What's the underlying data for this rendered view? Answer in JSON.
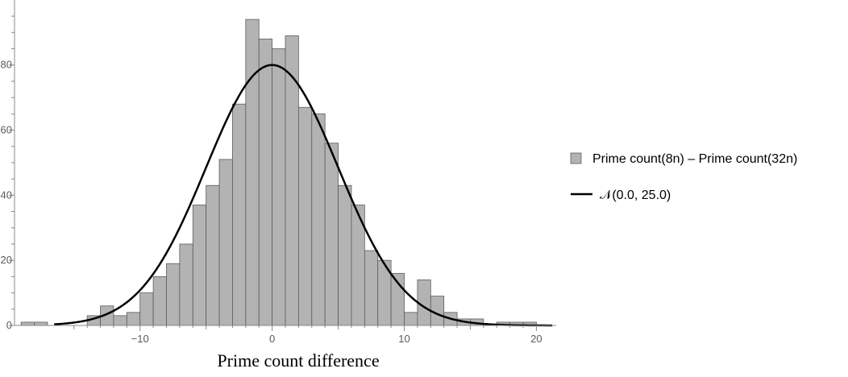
{
  "chart_data": {
    "type": "bar",
    "xlabel": "Prime count difference",
    "ylabel": "",
    "xlim": [
      -19.5,
      21.5
    ],
    "ylim": [
      0,
      97
    ],
    "x_ticks": [
      -10,
      0,
      10,
      20
    ],
    "y_ticks": [
      0,
      20,
      40,
      60,
      80
    ],
    "bin_width": 1,
    "bin_left_edges": [
      -19,
      -18,
      -17,
      -16,
      -15,
      -14,
      -13,
      -12,
      -11,
      -10,
      -9,
      -8,
      -7,
      -6,
      -5,
      -4,
      -3,
      -2,
      -1,
      0,
      1,
      2,
      3,
      4,
      5,
      6,
      7,
      8,
      9,
      10,
      11,
      12,
      13,
      14,
      15,
      16,
      17,
      18,
      19
    ],
    "values": [
      1,
      1,
      0,
      0,
      0,
      3,
      6,
      3,
      4,
      10,
      15,
      19,
      25,
      37,
      43,
      51,
      68,
      94,
      88,
      85,
      89,
      67,
      65,
      56,
      43,
      37,
      23,
      20,
      16,
      4,
      14,
      9,
      4,
      2,
      2,
      0,
      1,
      1,
      1
    ],
    "grid": false,
    "legend_position": "right",
    "series": [
      {
        "name": "Prime count(8n) – Prime count(32n)",
        "kind": "histogram",
        "color": "#b3b3b3"
      },
      {
        "name": "𝒩(0.0, 25.0)",
        "kind": "normal-curve",
        "mean": 0.0,
        "variance": 25.0,
        "peak": 80,
        "color": "#000000"
      }
    ]
  }
}
